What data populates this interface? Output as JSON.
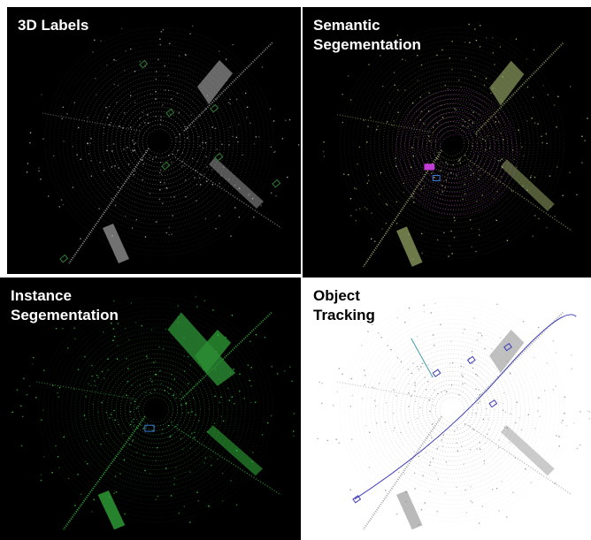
{
  "panels": [
    {
      "title": "3D Labels",
      "theme": "dark",
      "point_color": "#bdbdbd",
      "accent_color": "#2e7d32"
    },
    {
      "title": "Semantic\nSegementation",
      "theme": "dark",
      "point_color": "#b5c97a",
      "accent_color": "#c23bd6"
    },
    {
      "title": "Instance\nSegementation",
      "theme": "dark",
      "point_color": "#3fd94a",
      "accent_color": "#2a8c33"
    },
    {
      "title": "Object\nTracking",
      "theme": "light",
      "point_color": "#8c8c8c",
      "accent_color": "#3b3bb8"
    }
  ]
}
